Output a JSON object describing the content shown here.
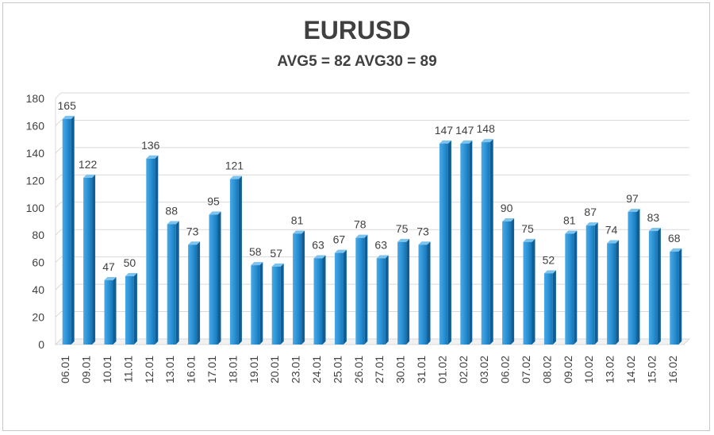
{
  "chart_data": {
    "type": "bar",
    "title": "EURUSD",
    "subtitle": "AVG5 = 82 AVG30 = 89",
    "categories": [
      "06.01",
      "09.01",
      "10.01",
      "11.01",
      "12.01",
      "13.01",
      "16.01",
      "17.01",
      "18.01",
      "19.01",
      "20.01",
      "23.01",
      "24.01",
      "25.01",
      "26.01",
      "27.01",
      "30.01",
      "31.01",
      "01.02",
      "02.02",
      "03.02",
      "06.02",
      "07.02",
      "08.02",
      "09.02",
      "10.02",
      "13.02",
      "14.02",
      "15.02",
      "16.02"
    ],
    "values": [
      165,
      122,
      47,
      50,
      136,
      88,
      73,
      95,
      121,
      58,
      57,
      81,
      63,
      67,
      78,
      63,
      75,
      73,
      147,
      147,
      148,
      90,
      75,
      52,
      81,
      87,
      74,
      97,
      83,
      68
    ],
    "yticks": [
      0,
      20,
      40,
      60,
      80,
      100,
      120,
      140,
      160,
      180
    ],
    "ylim": [
      0,
      180
    ],
    "xlabel": "",
    "ylabel": "",
    "grid": true,
    "bar_color": "#1f86c8"
  }
}
